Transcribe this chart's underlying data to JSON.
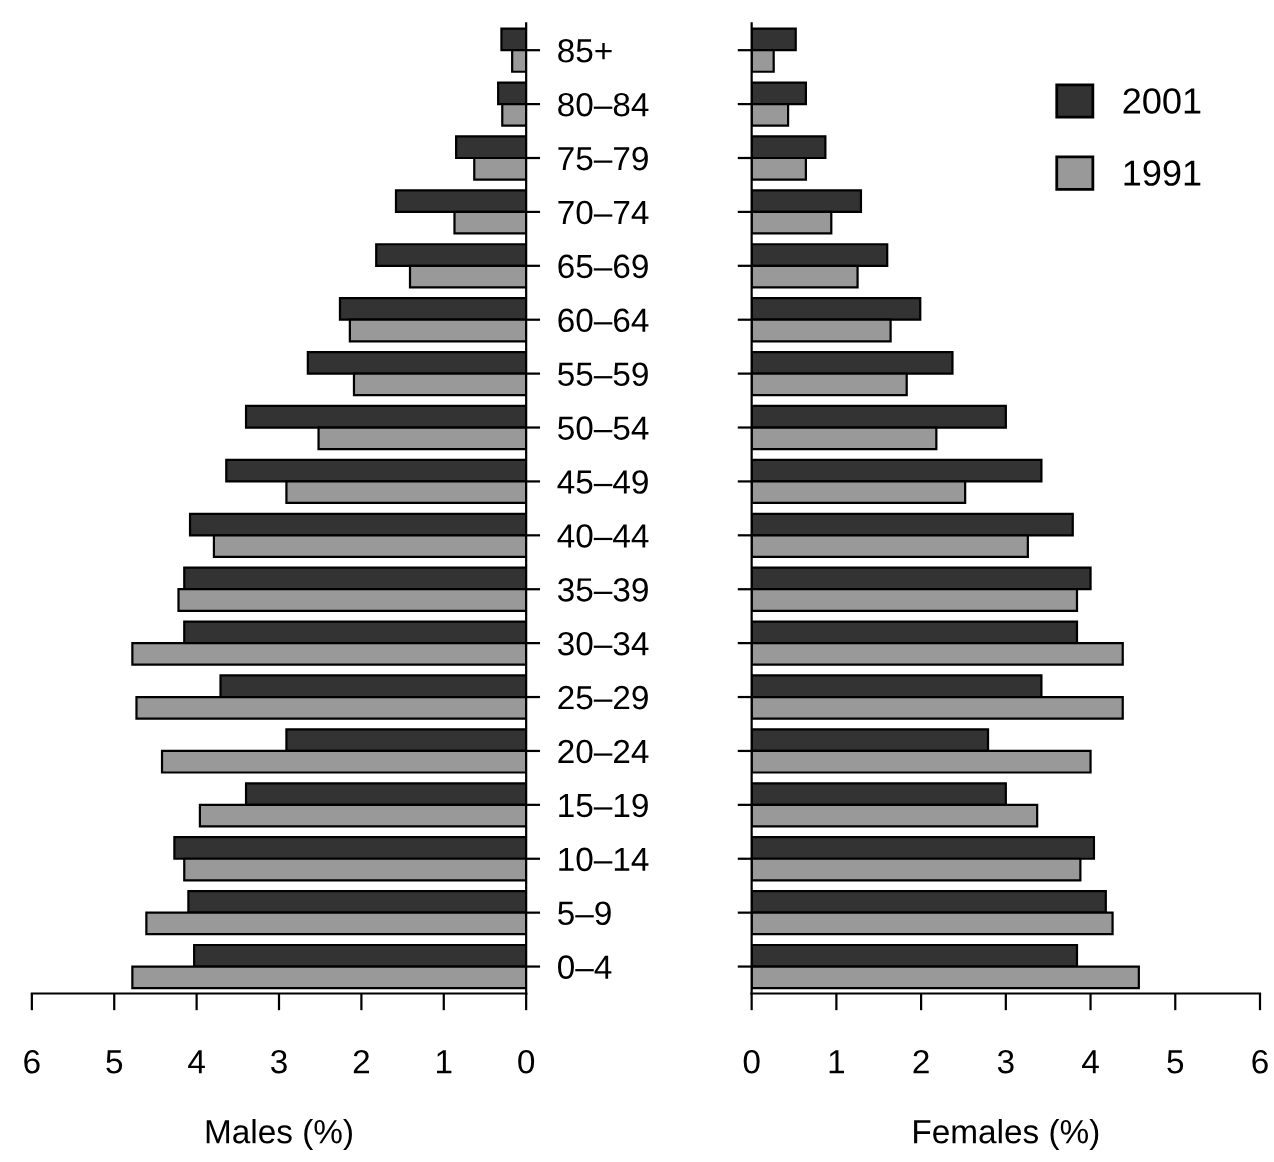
{
  "chart_data": [
    {
      "type": "bar",
      "orientation": "horizontal",
      "xlabel": "Males (%)",
      "categories": [
        "85+",
        "80–84",
        "75–79",
        "70–74",
        "65–69",
        "60–64",
        "55–59",
        "50–54",
        "45–49",
        "40–44",
        "35–39",
        "30–34",
        "25–29",
        "20–24",
        "15–19",
        "10–14",
        "5–9",
        "0–4"
      ],
      "series": [
        {
          "color": "#333333",
          "values": [
            0.3,
            0.34,
            0.85,
            1.58,
            1.82,
            2.26,
            2.65,
            3.4,
            3.64,
            4.08,
            4.15,
            4.15,
            3.71,
            2.91,
            3.4,
            4.27,
            4.1,
            4.03
          ]
        },
        {
          "color": "#999999",
          "values": [
            0.17,
            0.29,
            0.63,
            0.87,
            1.41,
            2.14,
            2.09,
            2.52,
            2.91,
            3.79,
            4.22,
            4.78,
            4.73,
            4.42,
            3.96,
            4.15,
            4.61,
            4.78
          ]
        }
      ],
      "xlim": [
        6,
        0
      ],
      "xticks": [
        6,
        5,
        4,
        3,
        2,
        1,
        0
      ],
      "grid": false
    },
    {
      "type": "bar",
      "orientation": "horizontal",
      "xlabel": "Females (%)",
      "categories": [
        null,
        null,
        null,
        null,
        null,
        null,
        null,
        null,
        null,
        null,
        null,
        null,
        null,
        null,
        null,
        null,
        null,
        null
      ],
      "series": [
        {
          "name": "2001",
          "color": "#333333",
          "values": [
            0.52,
            0.64,
            0.87,
            1.29,
            1.6,
            1.99,
            2.37,
            3.0,
            3.42,
            3.79,
            4.0,
            3.84,
            3.42,
            2.79,
            3.0,
            4.04,
            4.18,
            3.84
          ]
        },
        {
          "name": "1991",
          "color": "#999999",
          "values": [
            0.26,
            0.43,
            0.64,
            0.94,
            1.25,
            1.64,
            1.83,
            2.18,
            2.52,
            3.26,
            3.84,
            4.38,
            4.38,
            4.0,
            3.37,
            3.88,
            4.26,
            4.57
          ]
        }
      ],
      "xlim": [
        0,
        6
      ],
      "xticks": [
        0,
        1,
        2,
        3,
        4,
        5,
        6
      ],
      "grid": false,
      "legend": "top right"
    }
  ]
}
